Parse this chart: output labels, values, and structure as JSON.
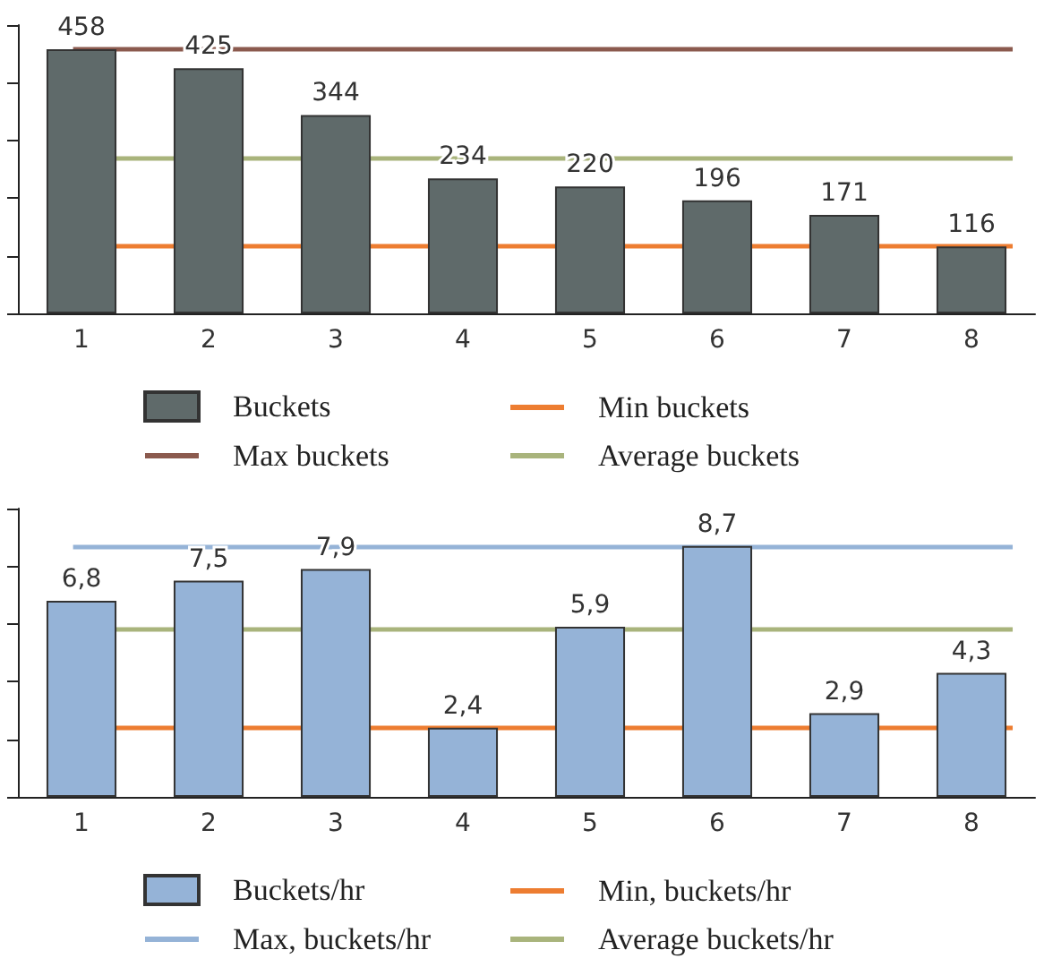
{
  "chart_data": [
    {
      "type": "bar",
      "categories": [
        "1",
        "2",
        "3",
        "4",
        "5",
        "6",
        "7",
        "8"
      ],
      "series": [
        {
          "name": "Buckets",
          "color": "#5f6a6a",
          "values": [
            458,
            425,
            344,
            234,
            220,
            196,
            171,
            116
          ]
        }
      ],
      "data_labels": true,
      "tick_labels": "x",
      "grid": false,
      "legend": "bottom",
      "ref_lines": [
        {
          "axis": "y",
          "value": 116,
          "label": "Min buckets",
          "color": "#ed7d31"
        },
        {
          "axis": "y",
          "value": 458,
          "label": "Max buckets",
          "color": "#8b5a4e"
        },
        {
          "axis": "y",
          "value": 270.5,
          "label": "Average buckets",
          "color": "#a9b47c"
        }
      ]
    },
    {
      "type": "bar",
      "categories": [
        "1",
        "2",
        "3",
        "4",
        "5",
        "6",
        "7",
        "8"
      ],
      "series": [
        {
          "name": "Buckets/hr",
          "color": "#95b3d7",
          "values": [
            6.8,
            7.5,
            7.9,
            2.4,
            5.9,
            8.7,
            2.9,
            4.3
          ],
          "value_labels": [
            "6,8",
            "7,5",
            "7,9",
            "2,4",
            "5,9",
            "8,7",
            "2,9",
            "4,3"
          ]
        }
      ],
      "tick_labels": "x",
      "grid": false,
      "legend": "bottom",
      "ref_lines": [
        {
          "axis": "y",
          "value": 2.4,
          "label": "Min, buckets/hr",
          "color": "#ed7d31"
        },
        {
          "axis": "y",
          "value": 8.7,
          "label": "Max, buckets/hr",
          "color": "#95b3d7"
        },
        {
          "axis": "y",
          "value": 5.8,
          "label": "Average buckets/hr",
          "color": "#a9b47c"
        }
      ]
    }
  ]
}
